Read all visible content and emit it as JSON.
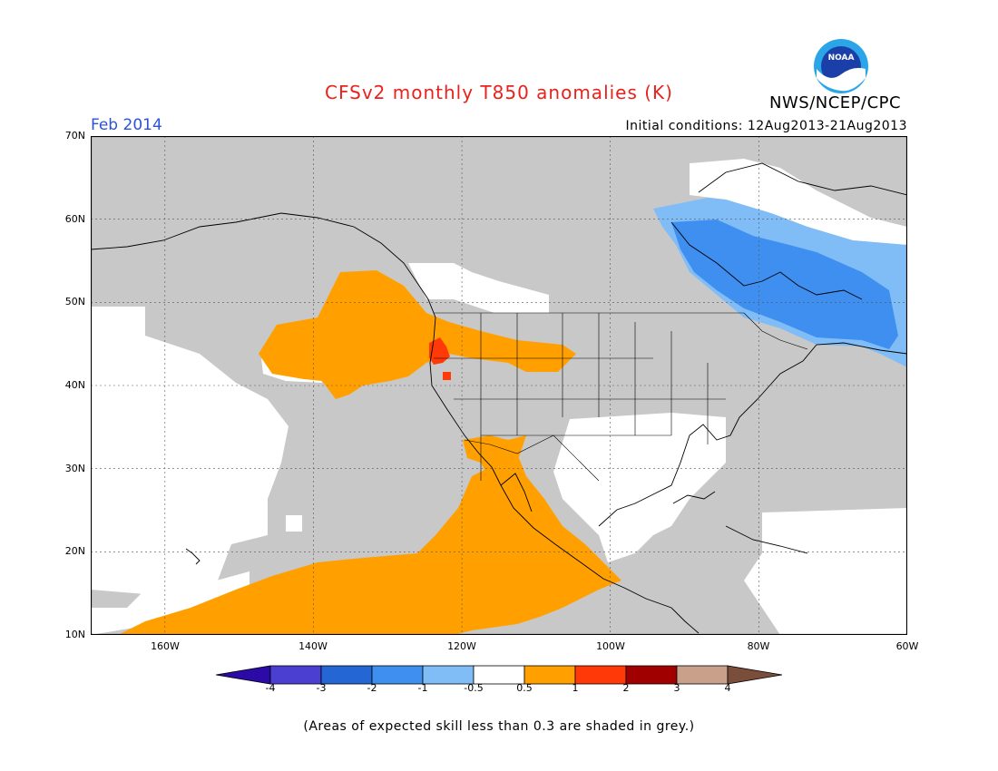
{
  "header": {
    "title": "CFSv2 monthly T850 anomalies (K)",
    "month": "Feb 2014",
    "initial_conditions": "Initial conditions: 12Aug2013-21Aug2013",
    "agency": "NWS/NCEP/CPC",
    "logo_text": "NOAA"
  },
  "axes": {
    "lat_labels": [
      "70N",
      "60N",
      "50N",
      "40N",
      "30N",
      "20N",
      "10N"
    ],
    "lon_labels": [
      "160W",
      "140W",
      "120W",
      "100W",
      "80W",
      "60W"
    ]
  },
  "legend": {
    "labels": [
      "-4",
      "-3",
      "-2",
      "-1",
      "-0.5",
      "0.5",
      "1",
      "2",
      "3",
      "4"
    ],
    "colors": [
      "#2c0aa8",
      "#4a3fd0",
      "#2466d4",
      "#3e8ff0",
      "#80bdf7",
      "#ffffff",
      "#ffa000",
      "#ff3a08",
      "#a00000",
      "#c9a089",
      "#7a4e3a"
    ]
  },
  "colors": {
    "skill_grey": "#c8c8c8",
    "warm_anomaly": "#ffa000",
    "strong_warm": "#ff3a08",
    "cool_anomaly": "#3e8ff0",
    "light_cool": "#80bdf7"
  },
  "footer": {
    "note": "(Areas of expected skill less than 0.3 are shaded in grey.)"
  }
}
